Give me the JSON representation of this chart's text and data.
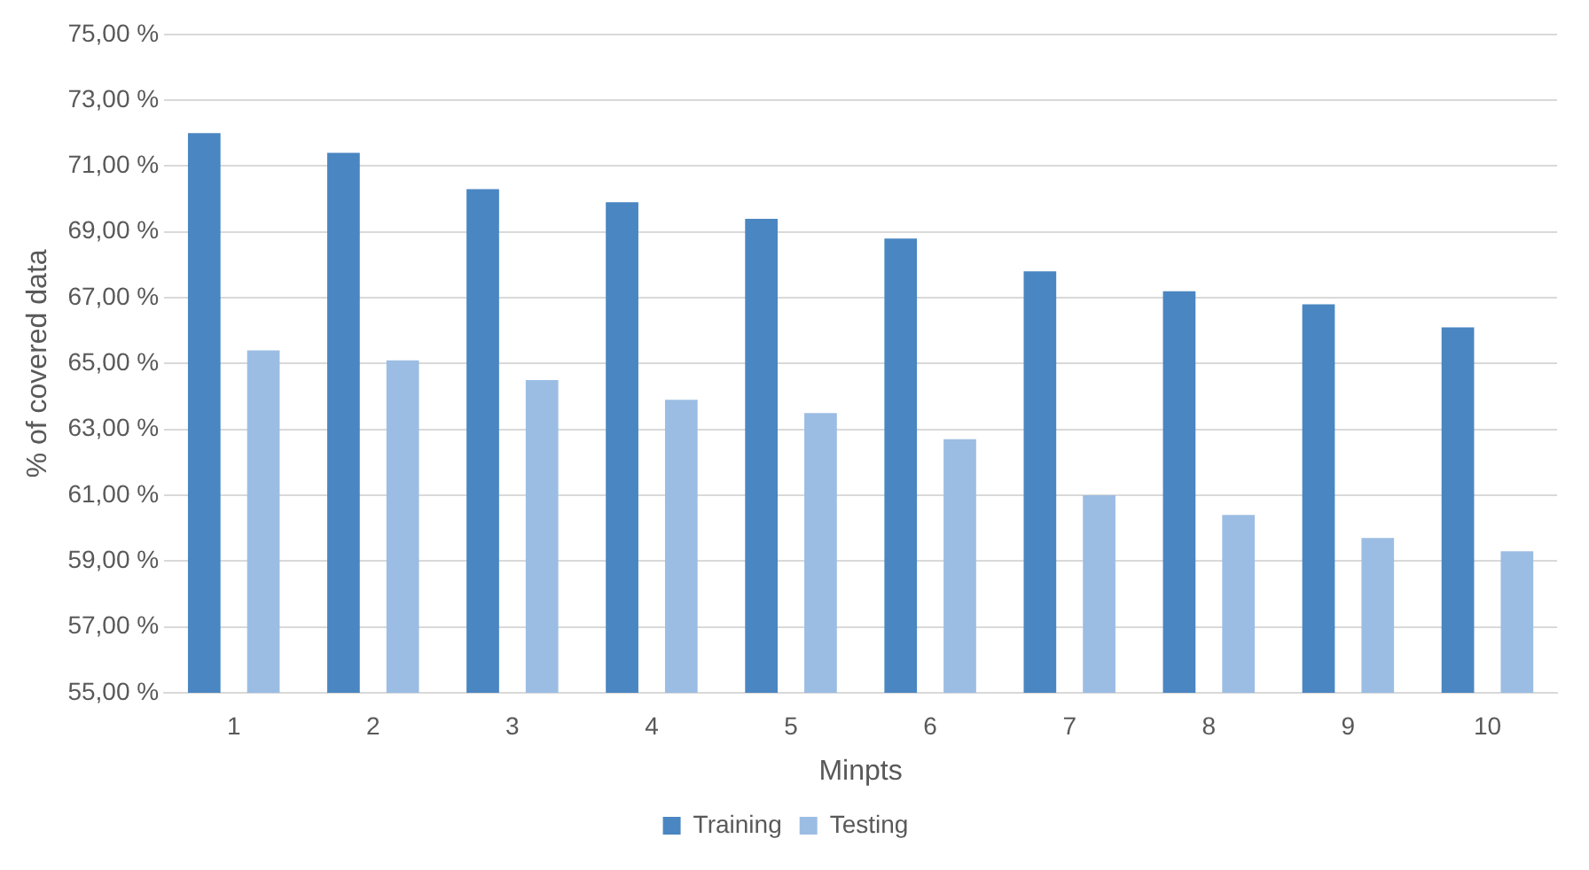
{
  "chart_data": {
    "type": "bar",
    "xlabel": "Minpts",
    "ylabel": "% of covered data",
    "categories": [
      "1",
      "2",
      "3",
      "4",
      "5",
      "6",
      "7",
      "8",
      "9",
      "10"
    ],
    "series": [
      {
        "name": "Training",
        "color": "#4a86c1",
        "values": [
          72.0,
          71.4,
          70.3,
          69.9,
          69.4,
          68.8,
          67.8,
          67.2,
          66.8,
          66.1
        ]
      },
      {
        "name": "Testing",
        "color": "#9bbde3",
        "values": [
          65.4,
          65.1,
          64.5,
          63.9,
          63.5,
          62.7,
          61.0,
          60.4,
          59.7,
          59.3
        ]
      }
    ],
    "ylim": [
      55,
      75
    ],
    "yticks": [
      {
        "value": 55,
        "label": "55,00 %"
      },
      {
        "value": 57,
        "label": "57,00 %"
      },
      {
        "value": 59,
        "label": "59,00 %"
      },
      {
        "value": 61,
        "label": "61,00 %"
      },
      {
        "value": 63,
        "label": "63,00 %"
      },
      {
        "value": 65,
        "label": "65,00 %"
      },
      {
        "value": 67,
        "label": "67,00 %"
      },
      {
        "value": 69,
        "label": "69,00 %"
      },
      {
        "value": 71,
        "label": "71,00 %"
      },
      {
        "value": 73,
        "label": "73,00 %"
      },
      {
        "value": 75,
        "label": "75,00 %"
      }
    ],
    "grid": "y",
    "legend": "bottom"
  }
}
